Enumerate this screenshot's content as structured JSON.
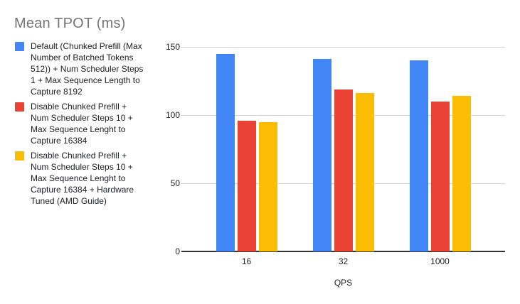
{
  "title": "Mean TPOT (ms)",
  "chart_data": {
    "type": "bar",
    "title": "Mean TPOT (ms)",
    "xlabel": "QPS",
    "ylabel": "",
    "categories": [
      "16",
      "32",
      "1000"
    ],
    "series": [
      {
        "name": "Default (Chunked Prefill (Max Number of Batched Tokens 512)) + Num Scheduler Steps 1 + Max Sequence Length to Capture 8192",
        "color": "#4285F4",
        "values": [
          145,
          141,
          140
        ]
      },
      {
        "name": "Disable Chunked Prefill + Num Scheduler Steps 10 + Max Sequence Lenght to Capture 16384",
        "color": "#EA4335",
        "values": [
          96,
          119,
          110
        ]
      },
      {
        "name": "Disable Chunked Prefill + Num Scheduler Steps 10 + Max Sequence Lenght to Capture 16384 + Hardware Tuned (AMD Guide)",
        "color": "#FBBC04",
        "values": [
          95,
          116,
          114
        ]
      }
    ],
    "ylim": [
      0,
      150
    ],
    "yticks": [
      0,
      50,
      100,
      150
    ],
    "grid": true,
    "legend_position": "left",
    "colors": {
      "title_text": "#757575",
      "axis_text": "#202124",
      "gridline": "#d4d4d4",
      "baseline": "#333333",
      "background": "#ffffff"
    }
  }
}
